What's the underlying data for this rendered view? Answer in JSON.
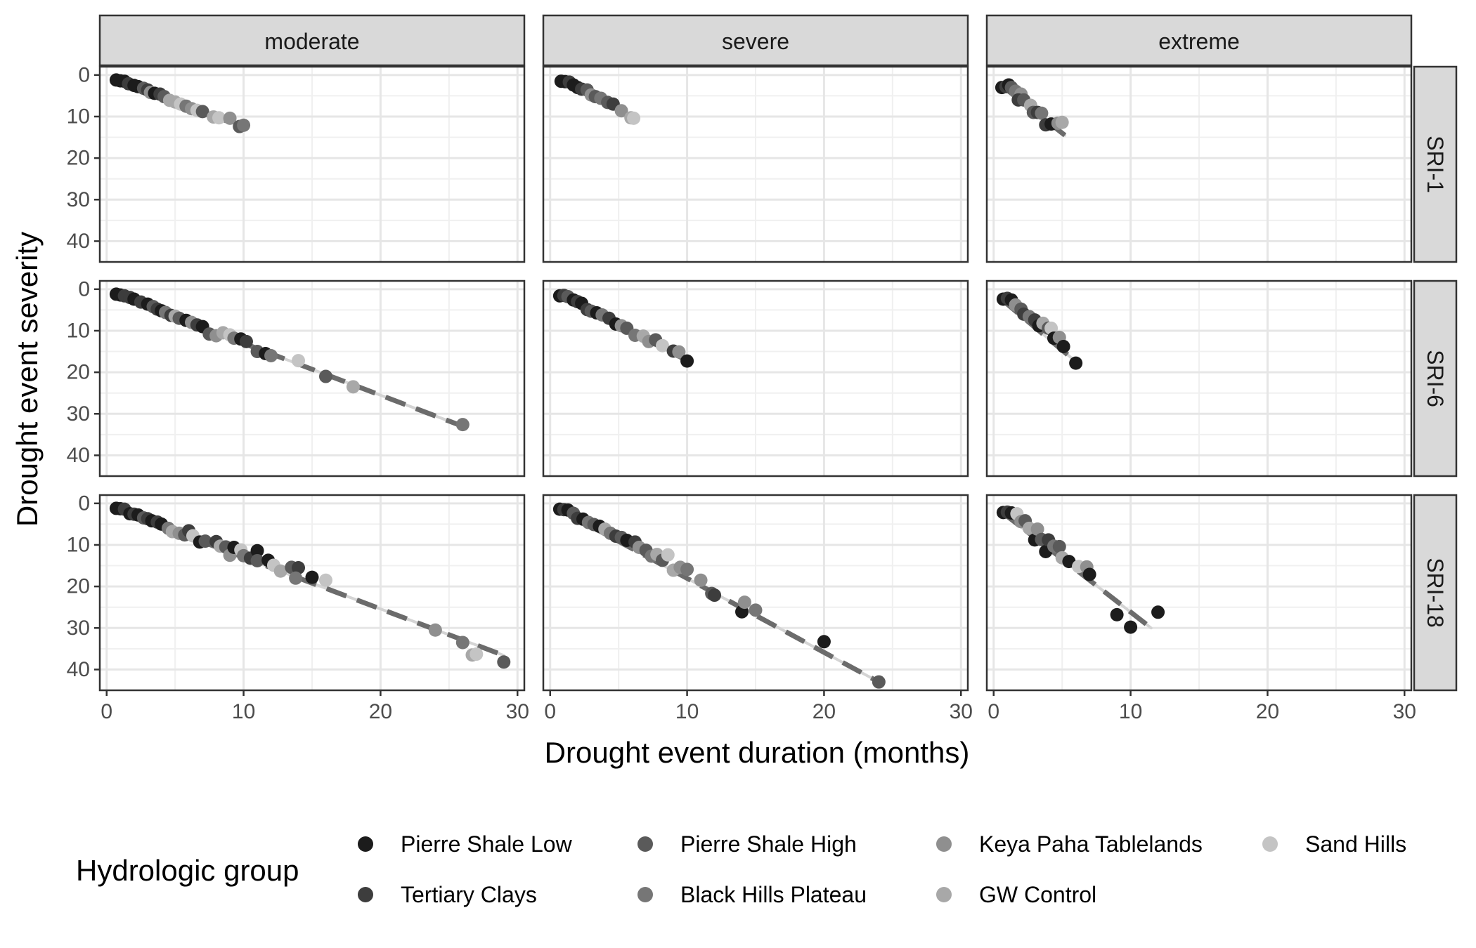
{
  "chart_data": {
    "type": "scatter",
    "facet_columns": [
      "moderate",
      "severe",
      "extreme"
    ],
    "facet_rows": [
      "SRI-1",
      "SRI-6",
      "SRI-18"
    ],
    "xlabel": "Drought event duration (months)",
    "ylabel": "Drought event severity",
    "xlim": [
      -0.5,
      30.5
    ],
    "ylim": [
      45,
      -2
    ],
    "y_reversed": true,
    "xticks": [
      0,
      10,
      20,
      30
    ],
    "yticks": [
      0,
      10,
      20,
      30,
      40
    ],
    "grid": true,
    "legend": {
      "title": "Hydrologic group",
      "position": "bottom",
      "entries": [
        {
          "name": "Pierre Shale Low",
          "color": "#1c1c1c"
        },
        {
          "name": "Tertiary Clays",
          "color": "#3d3d3d"
        },
        {
          "name": "Pierre Shale High",
          "color": "#5a5a5a"
        },
        {
          "name": "Black Hills Plateau",
          "color": "#767676"
        },
        {
          "name": "Keya Paha Tablelands",
          "color": "#8f8f8f"
        },
        {
          "name": "GW Control",
          "color": "#a8a8a8"
        },
        {
          "name": "Sand Hills",
          "color": "#c4c4c4"
        }
      ]
    },
    "panels": [
      {
        "row": "SRI-1",
        "col": "moderate",
        "fit": {
          "x": [
            0.7,
            10.2
          ],
          "y": [
            1.2,
            12.8
          ]
        },
        "points": [
          [
            0.7,
            1.2,
            0
          ],
          [
            1,
            1.4,
            0
          ],
          [
            1.3,
            1.5,
            0
          ],
          [
            1.6,
            2.1,
            1
          ],
          [
            2,
            2.5,
            0
          ],
          [
            2.3,
            2.8,
            0
          ],
          [
            2.7,
            3.2,
            2
          ],
          [
            3,
            3.6,
            1
          ],
          [
            3.2,
            4.2,
            4
          ],
          [
            3.5,
            4.4,
            0
          ],
          [
            3.9,
            4.6,
            1
          ],
          [
            4.2,
            5.2,
            2
          ],
          [
            4.6,
            6.1,
            5
          ],
          [
            5,
            6.5,
            5
          ],
          [
            5.4,
            7,
            6
          ],
          [
            5.8,
            7.5,
            3
          ],
          [
            6.2,
            8.1,
            4
          ],
          [
            6.6,
            8.5,
            6
          ],
          [
            7,
            8.8,
            2
          ],
          [
            7.8,
            10.1,
            5
          ],
          [
            8.2,
            10.3,
            6
          ],
          [
            9,
            10.4,
            4
          ],
          [
            9.7,
            12.4,
            2
          ],
          [
            10,
            12.1,
            3
          ]
        ]
      },
      {
        "row": "SRI-1",
        "col": "severe",
        "fit": {
          "x": [
            0.8,
            6.2
          ],
          "y": [
            1.5,
            10.5
          ]
        },
        "points": [
          [
            0.8,
            1.5,
            0
          ],
          [
            1.1,
            1.6,
            0
          ],
          [
            1.4,
            1.7,
            1
          ],
          [
            1.7,
            2.4,
            0
          ],
          [
            2,
            3,
            0
          ],
          [
            2.3,
            3.4,
            1
          ],
          [
            2.7,
            3.6,
            2
          ],
          [
            3,
            4.8,
            4
          ],
          [
            3.3,
            5.2,
            2
          ],
          [
            3.7,
            5.6,
            3
          ],
          [
            4.2,
            6.6,
            2
          ],
          [
            4.6,
            7,
            1
          ],
          [
            5.2,
            8.6,
            4
          ],
          [
            5.9,
            10.3,
            5
          ],
          [
            6.1,
            10.4,
            6
          ]
        ]
      },
      {
        "row": "SRI-1",
        "col": "extreme",
        "fit": {
          "x": [
            0.6,
            5.2
          ],
          "y": [
            2.6,
            14.5
          ]
        },
        "points": [
          [
            0.6,
            3,
            0
          ],
          [
            0.9,
            2.8,
            1
          ],
          [
            1.1,
            2.4,
            0
          ],
          [
            1.3,
            3,
            2
          ],
          [
            1.6,
            3.9,
            3
          ],
          [
            2,
            4.6,
            4
          ],
          [
            1.8,
            6,
            1
          ],
          [
            2.2,
            6,
            2
          ],
          [
            2.7,
            7.3,
            5
          ],
          [
            2.9,
            9,
            2
          ],
          [
            3.2,
            9,
            1
          ],
          [
            3.5,
            9.2,
            3
          ],
          [
            3.8,
            12,
            1
          ],
          [
            4.2,
            11.8,
            0
          ],
          [
            4.7,
            11.6,
            4
          ],
          [
            5,
            11.4,
            5
          ]
        ]
      },
      {
        "row": "SRI-6",
        "col": "moderate",
        "fit": {
          "x": [
            0.5,
            26
          ],
          "y": [
            1.2,
            33
          ]
        },
        "points": [
          [
            0.7,
            1.2,
            0
          ],
          [
            1,
            1.4,
            0
          ],
          [
            1.3,
            1.6,
            1
          ],
          [
            1.7,
            2,
            1
          ],
          [
            2,
            2.4,
            0
          ],
          [
            2.5,
            3.1,
            1
          ],
          [
            3,
            3.6,
            0
          ],
          [
            3.4,
            4.2,
            2
          ],
          [
            3.7,
            4.8,
            1
          ],
          [
            4,
            5.2,
            0
          ],
          [
            4.3,
            5.6,
            3
          ],
          [
            4.7,
            6.3,
            1
          ],
          [
            5,
            6.5,
            5
          ],
          [
            5.3,
            7,
            2
          ],
          [
            5.8,
            7.5,
            0
          ],
          [
            6.2,
            8,
            4
          ],
          [
            6.6,
            8.6,
            1
          ],
          [
            7,
            9,
            0
          ],
          [
            7.5,
            10.8,
            2
          ],
          [
            8,
            11.2,
            4
          ],
          [
            8.5,
            10.5,
            5
          ],
          [
            9,
            11,
            6
          ],
          [
            9.3,
            11.8,
            3
          ],
          [
            9.8,
            12,
            0
          ],
          [
            10.2,
            12.6,
            1
          ],
          [
            11,
            15,
            2
          ],
          [
            11.6,
            15.5,
            0
          ],
          [
            12,
            16,
            3
          ],
          [
            14,
            17.2,
            6
          ],
          [
            16,
            21,
            2
          ],
          [
            18,
            23.5,
            5
          ],
          [
            26,
            32.6,
            3
          ]
        ]
      },
      {
        "row": "SRI-6",
        "col": "severe",
        "fit": {
          "x": [
            0.7,
            10.2
          ],
          "y": [
            1.5,
            17.5
          ]
        },
        "points": [
          [
            0.7,
            1.6,
            0
          ],
          [
            1,
            1.5,
            1
          ],
          [
            1.3,
            1.8,
            2
          ],
          [
            1.7,
            2.6,
            0
          ],
          [
            2,
            3,
            1
          ],
          [
            2.3,
            3.4,
            0
          ],
          [
            2.7,
            4.9,
            1
          ],
          [
            3,
            5.3,
            2
          ],
          [
            3.4,
            5.7,
            0
          ],
          [
            3.8,
            6.2,
            3
          ],
          [
            4.3,
            7,
            1
          ],
          [
            4.8,
            8.4,
            0
          ],
          [
            5.2,
            8.8,
            4
          ],
          [
            5.6,
            9.4,
            2
          ],
          [
            6.2,
            11.1,
            3
          ],
          [
            6.8,
            11.3,
            5
          ],
          [
            7.2,
            12.6,
            4
          ],
          [
            7.7,
            12.2,
            2
          ],
          [
            8.2,
            13.6,
            6
          ],
          [
            9,
            14.9,
            1
          ],
          [
            9.4,
            15.1,
            4
          ],
          [
            10,
            17.3,
            0
          ]
        ]
      },
      {
        "row": "SRI-6",
        "col": "extreme",
        "fit": {
          "x": [
            0.6,
            6.2
          ],
          "y": [
            2.5,
            18
          ]
        },
        "points": [
          [
            0.7,
            2.4,
            0
          ],
          [
            1,
            2.2,
            1
          ],
          [
            1.3,
            2.6,
            0
          ],
          [
            1.6,
            3.8,
            4
          ],
          [
            2,
            4.8,
            2
          ],
          [
            2.2,
            6,
            1
          ],
          [
            2.6,
            6.6,
            3
          ],
          [
            3,
            7.4,
            1
          ],
          [
            3.3,
            8.8,
            0
          ],
          [
            3.6,
            8.2,
            5
          ],
          [
            4,
            9.4,
            2
          ],
          [
            4.2,
            9.4,
            6
          ],
          [
            4.4,
            11.8,
            0
          ],
          [
            4.8,
            11.6,
            4
          ],
          [
            5.1,
            13.8,
            0
          ],
          [
            6,
            17.8,
            0
          ]
        ]
      },
      {
        "row": "SRI-18",
        "col": "moderate",
        "fit": {
          "x": [
            0.6,
            29
          ],
          "y": [
            1.3,
            36.6
          ]
        },
        "points": [
          [
            0.7,
            1.2,
            0
          ],
          [
            1,
            1.3,
            0
          ],
          [
            1.3,
            1.4,
            1
          ],
          [
            1.7,
            2.5,
            0
          ],
          [
            2,
            2.6,
            1
          ],
          [
            2.3,
            2.8,
            0
          ],
          [
            2.7,
            3.5,
            2
          ],
          [
            3,
            3.7,
            1
          ],
          [
            3.3,
            4.2,
            0
          ],
          [
            3.7,
            4.5,
            1
          ],
          [
            4,
            5,
            0
          ],
          [
            4.5,
            6,
            3
          ],
          [
            4.8,
            6.8,
            5
          ],
          [
            5.3,
            7.2,
            4
          ],
          [
            5.7,
            7.6,
            2
          ],
          [
            6,
            6.6,
            1
          ],
          [
            6.3,
            7.8,
            6
          ],
          [
            6.8,
            9.3,
            0
          ],
          [
            7.2,
            9.1,
            2
          ],
          [
            8,
            9.2,
            1
          ],
          [
            8.3,
            10.3,
            5
          ],
          [
            8.7,
            10.5,
            2
          ],
          [
            9,
            12.5,
            4
          ],
          [
            9.3,
            10.6,
            0
          ],
          [
            9.8,
            11.2,
            6
          ],
          [
            10,
            12.6,
            3
          ],
          [
            10.5,
            13.2,
            1
          ],
          [
            11,
            11.4,
            0
          ],
          [
            11,
            13.8,
            2
          ],
          [
            11.8,
            13.7,
            0
          ],
          [
            12.2,
            14.9,
            6
          ],
          [
            12.7,
            16.3,
            5
          ],
          [
            13.5,
            15.4,
            2
          ],
          [
            14,
            15.5,
            1
          ],
          [
            13.8,
            18,
            3
          ],
          [
            15,
            17.8,
            0
          ],
          [
            16,
            18.5,
            6
          ],
          [
            24,
            30.5,
            4
          ],
          [
            26,
            33.5,
            3
          ],
          [
            26.7,
            36.5,
            5
          ],
          [
            27,
            36.3,
            6
          ],
          [
            29,
            38.2,
            2
          ]
        ]
      },
      {
        "row": "SRI-18",
        "col": "severe",
        "fit": {
          "x": [
            0.6,
            24
          ],
          "y": [
            1.3,
            43
          ]
        },
        "points": [
          [
            0.7,
            1.4,
            0
          ],
          [
            1,
            1.5,
            1
          ],
          [
            1.3,
            1.6,
            0
          ],
          [
            1.7,
            2.4,
            2
          ],
          [
            2,
            3.6,
            1
          ],
          [
            2.4,
            3.8,
            0
          ],
          [
            2.8,
            4.6,
            3
          ],
          [
            3.2,
            5.1,
            2
          ],
          [
            3.6,
            5.5,
            0
          ],
          [
            4,
            6.2,
            5
          ],
          [
            4.4,
            7.2,
            3
          ],
          [
            4.8,
            7.9,
            1
          ],
          [
            5.2,
            8.2,
            2
          ],
          [
            5.6,
            8.9,
            0
          ],
          [
            6.2,
            9.3,
            1
          ],
          [
            6.5,
            10.6,
            4
          ],
          [
            7,
            11.3,
            2
          ],
          [
            7.4,
            12.7,
            3
          ],
          [
            7.8,
            12.3,
            5
          ],
          [
            8.2,
            13.7,
            2
          ],
          [
            8.6,
            12.4,
            6
          ],
          [
            9,
            16.1,
            5
          ],
          [
            9.5,
            15.4,
            4
          ],
          [
            10,
            15.9,
            3
          ],
          [
            11,
            18.5,
            4
          ],
          [
            11.8,
            21.7,
            2
          ],
          [
            12,
            22.1,
            1
          ],
          [
            14,
            26.1,
            0
          ],
          [
            14.2,
            23.8,
            4
          ],
          [
            15,
            25.7,
            3
          ],
          [
            20,
            33.3,
            0
          ],
          [
            24,
            43,
            2
          ]
        ]
      },
      {
        "row": "SRI-18",
        "col": "extreme",
        "fit": {
          "x": [
            0.6,
            11.5
          ],
          "y": [
            2.1,
            30
          ]
        },
        "points": [
          [
            0.7,
            2.2,
            0
          ],
          [
            1,
            2.1,
            1
          ],
          [
            1.3,
            2.3,
            0
          ],
          [
            1.7,
            2.5,
            6
          ],
          [
            2,
            4.4,
            4
          ],
          [
            2.3,
            4.2,
            2
          ],
          [
            2.6,
            6,
            5
          ],
          [
            3,
            8.8,
            0
          ],
          [
            3.2,
            6.2,
            4
          ],
          [
            3.5,
            8.7,
            2
          ],
          [
            3.8,
            11.6,
            0
          ],
          [
            4,
            8.8,
            1
          ],
          [
            4.4,
            10.3,
            3
          ],
          [
            4.8,
            10.4,
            2
          ],
          [
            5,
            13.1,
            5
          ],
          [
            5.5,
            14,
            0
          ],
          [
            6.2,
            15.2,
            6
          ],
          [
            6.8,
            15.3,
            4
          ],
          [
            7,
            17.1,
            0
          ],
          [
            9,
            26.8,
            0
          ],
          [
            10,
            29.8,
            0
          ],
          [
            12,
            26.2,
            0
          ]
        ]
      }
    ]
  }
}
